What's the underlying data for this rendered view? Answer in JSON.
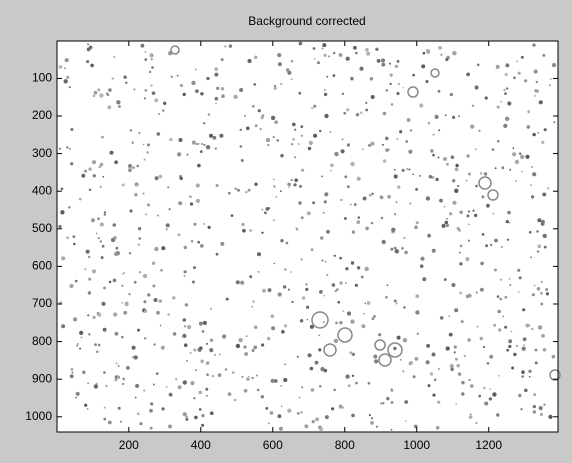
{
  "chart_data": {
    "type": "image",
    "title": "Background corrected",
    "xlim": [
      0.5,
      1392.5
    ],
    "xticks": [
      200,
      400,
      600,
      800,
      1000,
      1200
    ],
    "ylim": [
      0.5,
      1040.5
    ],
    "yticks": [
      100,
      200,
      300,
      400,
      500,
      600,
      700,
      800,
      900,
      1000
    ],
    "y_reversed": true,
    "grid": false
  }
}
